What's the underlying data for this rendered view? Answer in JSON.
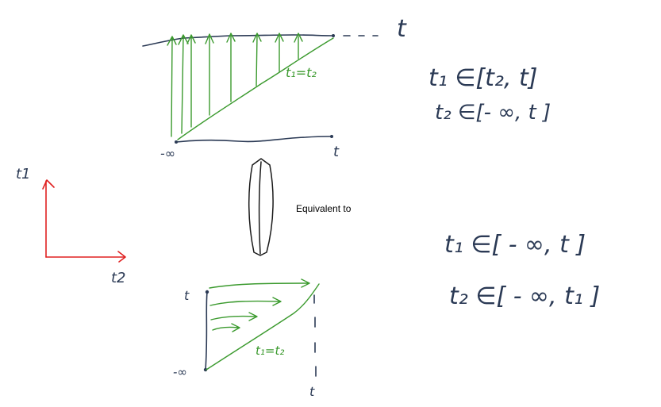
{
  "top_region": {
    "t_axis_label": "t",
    "t_bottom_label": "t",
    "minus_inf_label": "-∞",
    "diagonal_label": "t₁=t₂"
  },
  "bottom_region": {
    "t_left_label": "t",
    "minus_inf_label": "-∞",
    "diagonal_label": "t₁=t₂",
    "t_bottom_label": "t"
  },
  "axes": {
    "vertical_label": "t1",
    "horizontal_label": "t2"
  },
  "connector": {
    "label": "Equivalent to"
  },
  "equations": {
    "top_line1": "t₁ ∈[t₂, t]",
    "top_line2": "t₂ ∈[- ∞, t ]",
    "bottom_line1": "t₁ ∈[ - ∞, t ]",
    "bottom_line2": "t₂ ∈[ - ∞, t₁ ]"
  },
  "colors": {
    "blue_ink": "#2b3a55",
    "green_ink": "#3b9a2e",
    "red_ink": "#e02020",
    "black_ink": "#1a1a1a"
  }
}
